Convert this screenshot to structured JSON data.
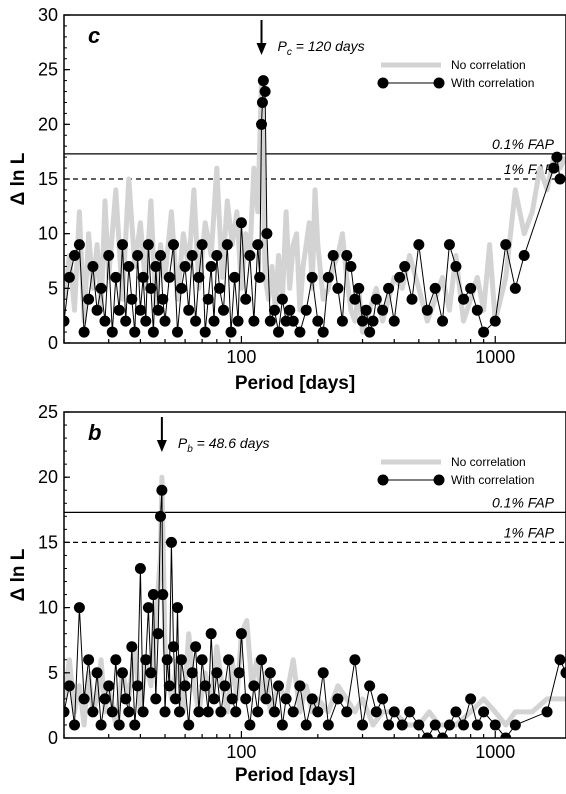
{
  "chart_data": [
    {
      "type": "line",
      "panel_label": "c",
      "xlabel": "Period [days]",
      "ylabel": "Δ ln L",
      "xscale": "log",
      "xlim": [
        20,
        1900
      ],
      "ylim": [
        0,
        30
      ],
      "x_ticks": [
        100,
        1000
      ],
      "x_tick_labels": [
        "100",
        "1000"
      ],
      "y_ticks": [
        0,
        5,
        10,
        15,
        20,
        25,
        30
      ],
      "y_tick_labels": [
        "0",
        "5",
        "10",
        "15",
        "20",
        "25",
        "30"
      ],
      "fap_lines": [
        {
          "label": "0.1% FAP",
          "value": 17.3,
          "style": "solid"
        },
        {
          "label": "1% FAP",
          "value": 15.0,
          "style": "dashed"
        }
      ],
      "annotation": {
        "prefix": "P",
        "sub": "c",
        "rest": " = 120 days",
        "x": 120
      },
      "legend": {
        "position": "top-right",
        "entries": [
          "No correlation",
          "With correlation"
        ]
      },
      "series": [
        {
          "name": "No correlation",
          "color": "#d3d3d3",
          "x": [
            20,
            21,
            22,
            23,
            24,
            25,
            26,
            27,
            28,
            29,
            30,
            32,
            34,
            36,
            38,
            40,
            42,
            44,
            46,
            48,
            50,
            53,
            56,
            59,
            62,
            65,
            68,
            72,
            76,
            80,
            84,
            88,
            92,
            96,
            100,
            104,
            108,
            112,
            116,
            120,
            124,
            128,
            132,
            136,
            140,
            145,
            150,
            155,
            160,
            165,
            170,
            175,
            180,
            185,
            190,
            195,
            200,
            210,
            220,
            230,
            240,
            250,
            260,
            270,
            280,
            290,
            300,
            320,
            340,
            360,
            380,
            400,
            430,
            460,
            500,
            540,
            580,
            620,
            660,
            700,
            750,
            800,
            850,
            900,
            950,
            1000,
            1100,
            1200,
            1300,
            1400,
            1500,
            1600,
            1700,
            1800,
            1900
          ],
          "y": [
            4,
            8,
            3,
            12,
            2,
            10,
            5,
            9,
            3,
            13,
            6,
            14,
            4,
            15,
            7,
            11,
            5,
            13,
            3,
            9,
            6,
            12,
            4,
            10,
            7,
            14,
            5,
            11,
            8,
            16,
            6,
            13,
            9,
            12,
            5,
            10,
            8,
            16,
            12,
            24,
            6,
            4,
            7,
            3,
            8,
            4,
            12,
            5,
            9,
            10,
            3,
            7,
            9,
            11,
            5,
            14,
            9,
            4,
            5,
            7,
            8,
            10,
            6,
            3,
            2,
            5,
            1,
            3,
            5,
            2,
            4,
            6,
            5,
            8,
            5,
            2,
            4,
            6,
            3,
            8,
            2,
            4,
            6,
            3,
            9,
            2,
            6,
            14,
            10,
            12,
            16,
            14,
            17,
            16,
            17
          ]
        },
        {
          "name": "With correlation",
          "color": "#000000",
          "x": [
            20,
            21,
            22,
            23,
            24,
            25,
            26,
            27,
            28,
            29,
            30,
            31,
            32,
            33,
            34,
            35,
            36,
            37,
            38,
            39,
            40,
            41,
            42,
            43,
            44,
            45,
            46,
            47,
            48,
            49,
            50,
            52,
            54,
            56,
            58,
            60,
            62,
            64,
            66,
            68,
            70,
            72,
            74,
            76,
            78,
            80,
            82,
            85,
            88,
            91,
            94,
            97,
            100,
            104,
            108,
            112,
            116,
            118,
            120,
            121,
            122,
            124,
            126,
            130,
            135,
            140,
            145,
            150,
            155,
            160,
            170,
            180,
            190,
            200,
            210,
            220,
            230,
            240,
            250,
            260,
            270,
            280,
            290,
            300,
            310,
            320,
            330,
            340,
            360,
            380,
            400,
            420,
            440,
            470,
            500,
            540,
            580,
            620,
            660,
            700,
            750,
            800,
            850,
            900,
            1000,
            1100,
            1200,
            1300,
            1700,
            1750,
            1800
          ],
          "y": [
            2,
            6,
            8,
            9,
            1,
            4,
            7,
            3,
            5,
            2,
            8,
            1,
            6,
            3,
            9,
            2,
            7,
            4,
            1,
            8,
            3,
            6,
            2,
            9,
            5,
            1,
            7,
            3,
            8,
            4,
            2,
            6,
            9,
            1,
            5,
            7,
            3,
            8,
            2,
            6,
            9,
            1,
            4,
            7,
            2,
            8,
            5,
            3,
            9,
            1,
            6,
            2,
            11,
            4,
            8,
            2,
            9,
            6,
            20,
            22,
            24,
            23,
            10,
            2,
            3,
            1,
            4,
            2,
            3,
            2,
            1,
            3,
            6,
            2,
            1,
            6,
            8,
            5,
            2,
            8,
            7,
            4,
            5,
            2,
            3,
            1,
            2,
            4,
            3,
            5,
            2,
            6,
            7,
            4,
            9,
            3,
            5,
            2,
            9,
            7,
            4,
            5,
            3,
            1,
            2,
            9,
            5,
            8,
            16,
            17,
            15
          ]
        }
      ]
    },
    {
      "type": "line",
      "panel_label": "b",
      "xlabel": "Period [days]",
      "ylabel": "Δ ln L",
      "xscale": "log",
      "xlim": [
        20,
        1900
      ],
      "ylim": [
        0,
        25
      ],
      "x_ticks": [
        100,
        1000
      ],
      "x_tick_labels": [
        "100",
        "1000"
      ],
      "y_ticks": [
        0,
        5,
        10,
        15,
        20,
        25
      ],
      "y_tick_labels": [
        "0",
        "5",
        "10",
        "15",
        "20",
        "25"
      ],
      "fap_lines": [
        {
          "label": "0.1% FAP",
          "value": 17.3,
          "style": "solid"
        },
        {
          "label": "1% FAP",
          "value": 15.0,
          "style": "dashed"
        }
      ],
      "annotation": {
        "prefix": "P",
        "sub": "b",
        "rest": " = 48.6 days",
        "x": 48.6
      },
      "legend": {
        "position": "top-right",
        "entries": [
          "No correlation",
          "With correlation"
        ]
      },
      "series": [
        {
          "name": "No correlation",
          "color": "#d3d3d3",
          "x": [
            20,
            21,
            22,
            23,
            24,
            25,
            26,
            27,
            28,
            29,
            30,
            32,
            34,
            36,
            38,
            40,
            42,
            44,
            46,
            48,
            48.6,
            50,
            53,
            56,
            59,
            62,
            65,
            68,
            72,
            76,
            80,
            84,
            88,
            92,
            96,
            100,
            105,
            110,
            115,
            120,
            125,
            130,
            140,
            150,
            160,
            170,
            180,
            190,
            200,
            220,
            240,
            260,
            280,
            300,
            330,
            360,
            400,
            450,
            500,
            550,
            600,
            700,
            800,
            900,
            1000,
            1100,
            1200,
            1400,
            1600,
            1800,
            1900
          ],
          "y": [
            3,
            6,
            2,
            4,
            1,
            5,
            2,
            3,
            6,
            2,
            4,
            1,
            5,
            3,
            7,
            2,
            6,
            4,
            9,
            14,
            20,
            7,
            3,
            6,
            2,
            8,
            4,
            2,
            5,
            3,
            7,
            4,
            2,
            6,
            3,
            8,
            9,
            4,
            6,
            3,
            5,
            2,
            4,
            3,
            6,
            2,
            4,
            2,
            3,
            2,
            4,
            3,
            2,
            3,
            1,
            2,
            2,
            1,
            1,
            2,
            1,
            1,
            2,
            3,
            2,
            1,
            2,
            2,
            3,
            3,
            3
          ]
        },
        {
          "name": "With correlation",
          "color": "#000000",
          "x": [
            20,
            21,
            22,
            23,
            24,
            25,
            26,
            27,
            28,
            29,
            30,
            31,
            32,
            33,
            34,
            35,
            36,
            37,
            38,
            39,
            40,
            41,
            42,
            43,
            44,
            45,
            46,
            47,
            48,
            48.6,
            49,
            50,
            51,
            52,
            53,
            54,
            55,
            56,
            57,
            58,
            60,
            62,
            64,
            66,
            68,
            70,
            72,
            74,
            76,
            78,
            80,
            83,
            86,
            89,
            92,
            95,
            98,
            100,
            104,
            108,
            112,
            116,
            120,
            125,
            130,
            135,
            140,
            145,
            150,
            160,
            170,
            180,
            190,
            200,
            210,
            220,
            240,
            260,
            280,
            300,
            320,
            340,
            360,
            380,
            400,
            430,
            460,
            500,
            540,
            580,
            620,
            660,
            700,
            750,
            800,
            850,
            900,
            1000,
            1100,
            1200,
            1600,
            1800,
            1900
          ],
          "y": [
            2,
            4,
            1,
            10,
            3,
            6,
            2,
            5,
            1,
            3,
            4,
            2,
            6,
            1,
            5,
            3,
            2,
            7,
            1,
            4,
            13,
            2,
            6,
            10,
            5,
            11,
            3,
            8,
            17,
            19,
            11,
            2,
            6,
            4,
            15,
            7,
            3,
            10,
            2,
            6,
            4,
            1,
            5,
            7,
            2,
            6,
            4,
            2,
            8,
            3,
            5,
            2,
            4,
            6,
            3,
            2,
            5,
            8,
            3,
            1,
            4,
            2,
            6,
            3,
            5,
            2,
            4,
            1,
            3,
            2,
            4,
            1,
            3,
            2,
            5,
            1,
            3,
            2,
            6,
            1,
            4,
            2,
            3,
            1,
            2,
            1,
            2,
            1,
            0,
            1,
            0,
            1,
            2,
            1,
            3,
            1,
            2,
            1,
            0,
            1,
            2,
            6,
            5
          ]
        }
      ]
    }
  ]
}
